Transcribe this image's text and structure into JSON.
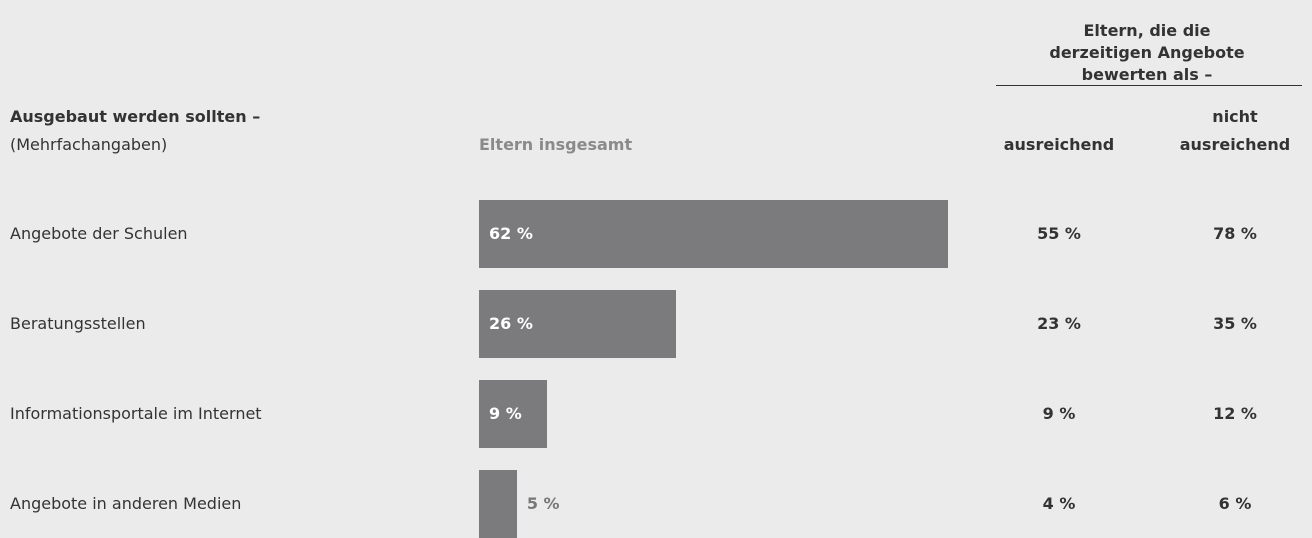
{
  "chart_data": {
    "type": "bar",
    "row_header": "Ausgebaut werden sollten –",
    "row_subheader": "(Mehrfachangaben)",
    "bar_header": "Eltern insgesamt",
    "group_header": "Eltern, die die derzeitigen Angebote bewerten als –",
    "categories": [
      "Angebote der Schulen",
      "Beratungsstellen",
      "Informationsportale im Internet",
      "Angebote in anderen Medien"
    ],
    "values": [
      62,
      26,
      9,
      5
    ],
    "value_labels": [
      "62 %",
      "26 %",
      "9 %",
      "5 %"
    ],
    "color": "#7b7b7e",
    "columns": [
      {
        "name": "ausreichend",
        "values": [
          55,
          23,
          9,
          4
        ],
        "value_labels": [
          "55 %",
          "23 %",
          "9 %",
          "4 %"
        ]
      },
      {
        "name": "nicht ausreichend",
        "values": [
          78,
          35,
          12,
          6
        ],
        "value_labels": [
          "78 %",
          "35 %",
          "12 %",
          "6 %"
        ]
      }
    ]
  }
}
